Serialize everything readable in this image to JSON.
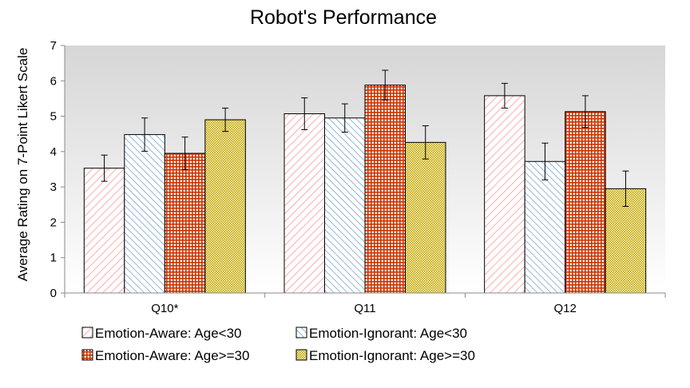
{
  "chart_data": {
    "type": "bar",
    "title": "Robot's Performance",
    "xlabel": "",
    "ylabel": "Average Rating on 7-Point Likert Scale",
    "ylim": [
      0,
      7
    ],
    "yticks": [
      "0",
      "1",
      "2",
      "3",
      "4",
      "5",
      "6",
      "7"
    ],
    "categories": [
      "Q10*",
      "Q11",
      "Q12"
    ],
    "grid": false,
    "legend_position": "bottom",
    "series": [
      {
        "name": "Emotion-Aware: Age<30",
        "values": [
          3.53,
          5.07,
          5.58
        ],
        "error": [
          0.37,
          0.45,
          0.35
        ],
        "color": "#ff9999",
        "pattern": "forward-diagonal"
      },
      {
        "name": "Emotion-Ignorant: Age<30",
        "values": [
          4.48,
          4.95,
          3.72
        ],
        "error": [
          0.47,
          0.4,
          0.52
        ],
        "color": "#6699cc",
        "pattern": "backward-diagonal"
      },
      {
        "name": "Emotion-Aware: Age>=30",
        "values": [
          3.95,
          5.88,
          5.13
        ],
        "error": [
          0.46,
          0.42,
          0.45
        ],
        "color": "#cc3300",
        "pattern": "grid"
      },
      {
        "name": "Emotion-Ignorant: Age>=30",
        "values": [
          4.9,
          4.26,
          2.95
        ],
        "error": [
          0.33,
          0.47,
          0.5
        ],
        "color": "#b8a000",
        "pattern": "dots"
      }
    ]
  }
}
